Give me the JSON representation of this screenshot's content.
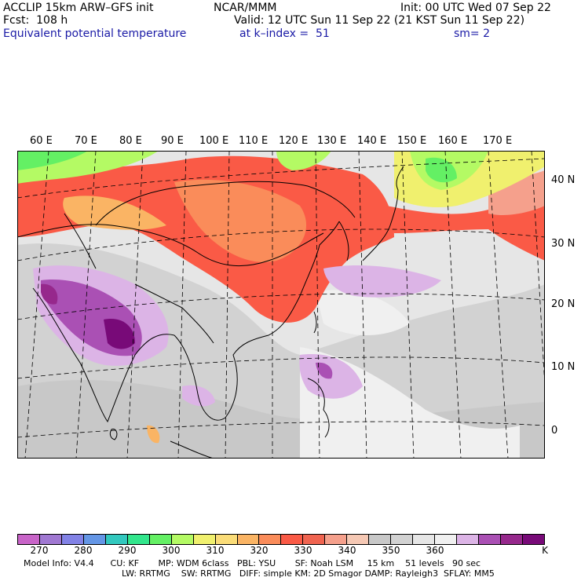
{
  "header": {
    "model": "ACCLIP 15km ARW–GFS init",
    "fcst": "Fcst:  108 h",
    "field": "Equivalent potential temperature",
    "org": "NCAR/MMM",
    "valid": "Valid: 12 UTC Sun 11 Sep 22 (21 KST Sun 11 Sep 22)",
    "level": "at k–index =  51",
    "init": "Init: 00 UTC Wed 07 Sep 22",
    "smooth": "sm= 2"
  },
  "map": {
    "lon_labels": [
      "60 E",
      "70 E",
      "80 E",
      "90 E",
      "100 E",
      "110 E",
      "120 E",
      "130 E",
      "140 E",
      "150 E",
      "160 E",
      "170 E"
    ],
    "lat_labels": [
      "40 N",
      "30 N",
      "20 N",
      "10 N",
      "0"
    ]
  },
  "colorbar": {
    "colors": [
      "#c864c8",
      "#a078d2",
      "#8282e6",
      "#6496e6",
      "#32c8be",
      "#32e68c",
      "#64f064",
      "#b4fa64",
      "#f0f06e",
      "#fadc78",
      "#fab464",
      "#fa8c5a",
      "#fa5a46",
      "#f06450",
      "#f5a08c",
      "#f5c8b4",
      "#c8c8c8",
      "#d2d2d2",
      "#e6e6e6",
      "#f0f0f0",
      "#dcb4e6",
      "#aa50b4",
      "#96288c",
      "#780a78"
    ],
    "labels": [
      "270",
      "280",
      "290",
      "300",
      "310",
      "320",
      "330",
      "340",
      "350",
      "360"
    ],
    "unit": "K"
  },
  "footer": {
    "line1": "Model Info: V4.4      CU: KF       MP: WDM 6class   PBL: YSU       SF: Noah LSM     15 km    51 levels   90 sec",
    "line2": "LW: RRTMG    SW: RRTMG   DIFF: simple KM: 2D Smagor DAMP: Rayleigh3  SFLAY: MM5"
  }
}
